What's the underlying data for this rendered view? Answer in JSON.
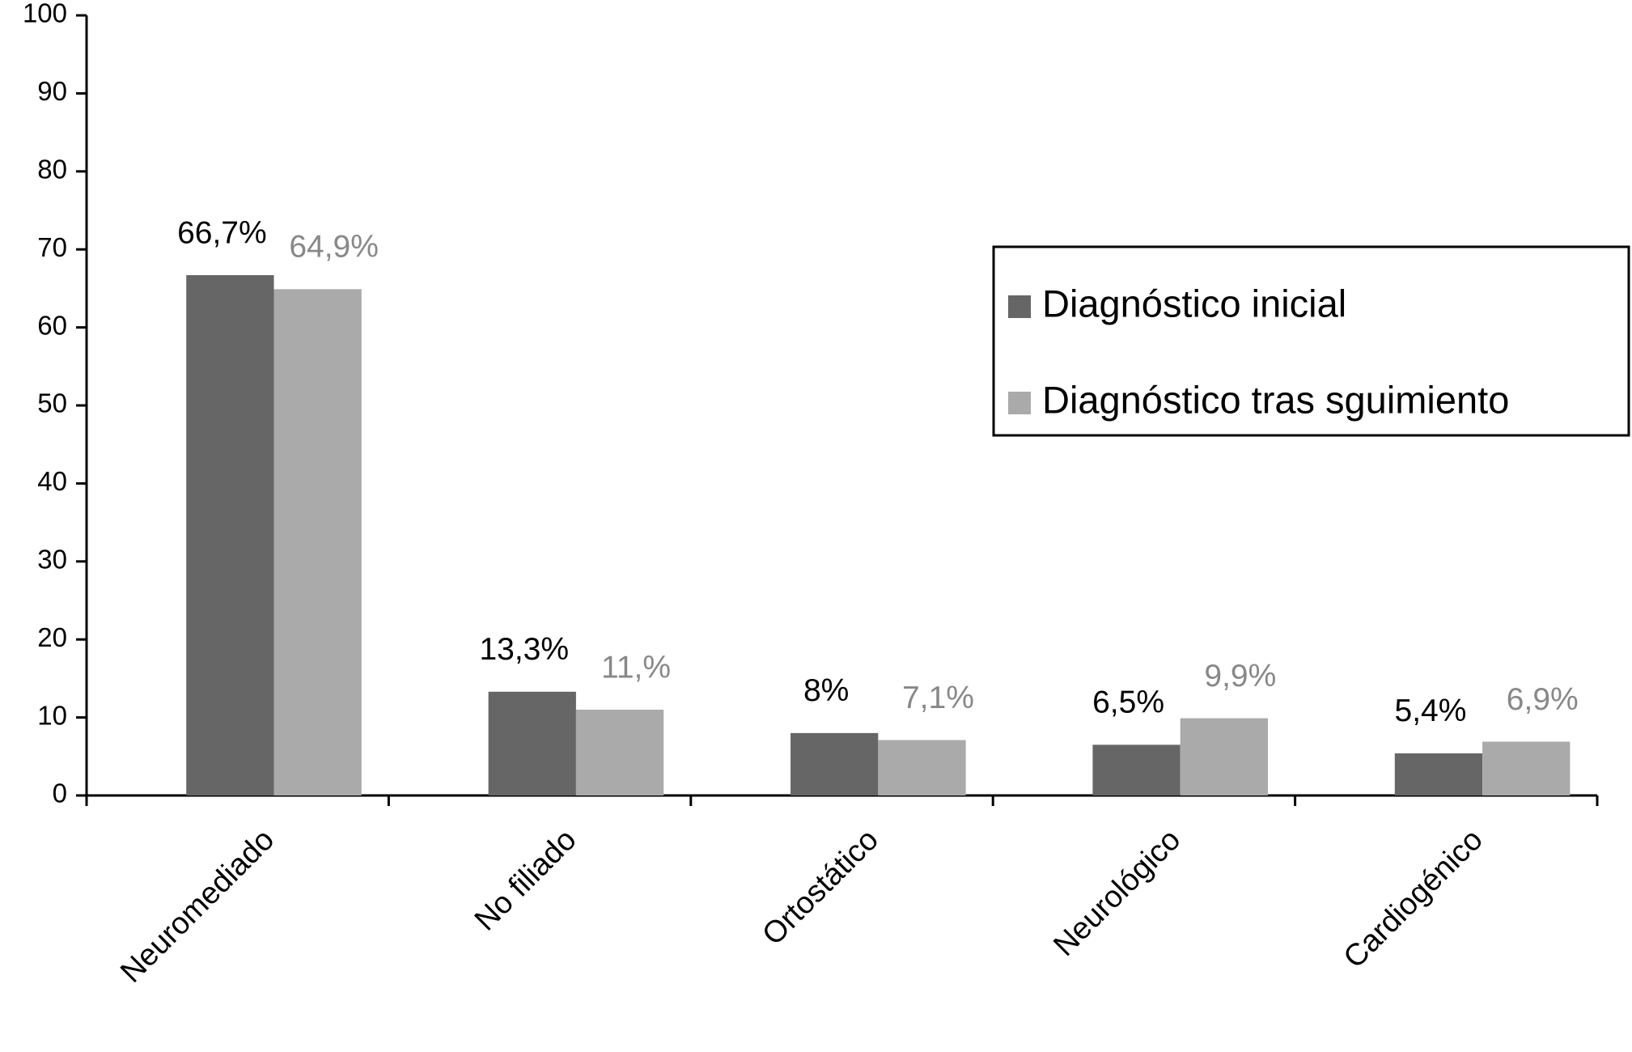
{
  "chart_data": {
    "type": "bar",
    "categories": [
      "Neuromediado",
      "No filiado",
      "Ortostático",
      "Neurológico",
      "Cardiogénico"
    ],
    "series": [
      {
        "name": "Diagnóstico inicial",
        "color": "#666666",
        "label_color": "#000000",
        "values": [
          66.7,
          13.3,
          8,
          6.5,
          5.4
        ],
        "value_labels": [
          "66,7%",
          "13,3%",
          "8%",
          "6,5%",
          "5,4%"
        ]
      },
      {
        "name": "Diagnóstico tras sguimiento",
        "color": "#aaaaaa",
        "label_color": "#888888",
        "values": [
          64.9,
          11,
          7.1,
          9.9,
          6.9
        ],
        "value_labels": [
          "64,9%",
          "11,%",
          "7,1%",
          "9,9%",
          "6,9%"
        ]
      }
    ],
    "ylim": [
      0,
      100
    ],
    "yticks": [
      0,
      10,
      20,
      30,
      40,
      50,
      60,
      70,
      80,
      90,
      100
    ],
    "legend": "upper right",
    "grid": false
  }
}
